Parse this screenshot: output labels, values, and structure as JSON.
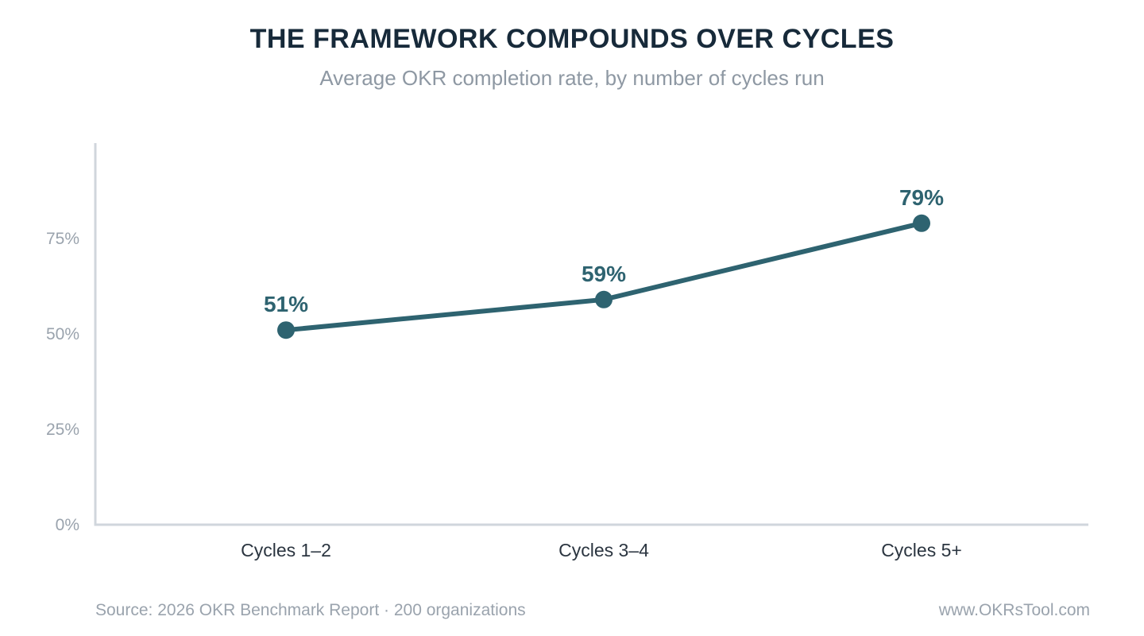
{
  "header": {
    "title": "THE FRAMEWORK COMPOUNDS OVER CYCLES",
    "subtitle": "Average OKR completion rate, by number of cycles run"
  },
  "footer": {
    "source": "Source: 2026 OKR Benchmark Report · 200 organizations",
    "website": "www.OKRsTool.com"
  },
  "colors": {
    "series": "#2e6370",
    "axis": "#d0d6dc",
    "tick_label": "#9aa3ad",
    "category_label": "#2b3540"
  },
  "chart_data": {
    "type": "line",
    "title": "THE FRAMEWORK COMPOUNDS OVER CYCLES",
    "subtitle": "Average OKR completion rate, by number of cycles run",
    "categories": [
      "Cycles 1–2",
      "Cycles 3–4",
      "Cycles 5+"
    ],
    "series": [
      {
        "values": [
          51,
          59,
          79
        ],
        "labels": [
          "51%",
          "59%",
          "79%"
        ]
      }
    ],
    "ylim": [
      0,
      100
    ],
    "yticks": [
      0,
      25,
      50,
      75
    ],
    "ytick_labels": [
      "0%",
      "25%",
      "50%",
      "75%"
    ],
    "grid": false,
    "legend": "none"
  }
}
